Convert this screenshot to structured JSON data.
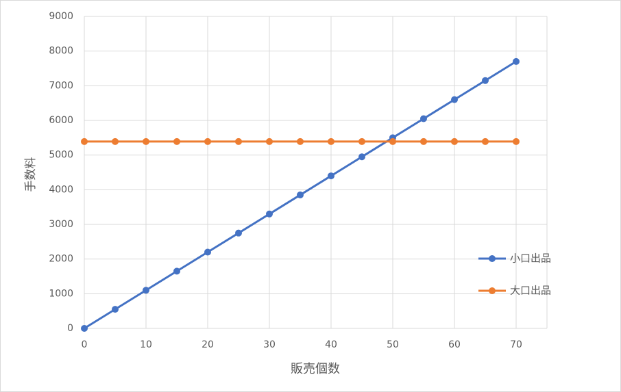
{
  "chart_data": {
    "type": "line",
    "x_label": "販売個数",
    "y_label": "手数料",
    "x": [
      0,
      5,
      10,
      15,
      20,
      25,
      30,
      35,
      40,
      45,
      50,
      55,
      60,
      65,
      70
    ],
    "series": [
      {
        "name": "小口出品",
        "color": "#4472c4",
        "values": [
          0,
          550,
          1100,
          1650,
          2200,
          2750,
          3300,
          3850,
          4400,
          4950,
          5500,
          6050,
          6600,
          7150,
          7700
        ]
      },
      {
        "name": "大口出品",
        "color": "#ed7d31",
        "values": [
          5390,
          5390,
          5390,
          5390,
          5390,
          5390,
          5390,
          5390,
          5390,
          5390,
          5390,
          5390,
          5390,
          5390,
          5390
        ]
      }
    ],
    "xlim": [
      0,
      75
    ],
    "xticks": [
      0,
      10,
      20,
      30,
      40,
      50,
      60,
      70
    ],
    "ylim": [
      0,
      9000
    ],
    "yticks": [
      0,
      1000,
      2000,
      3000,
      4000,
      5000,
      6000,
      7000,
      8000,
      9000
    ],
    "grid": true,
    "legend": "right"
  }
}
